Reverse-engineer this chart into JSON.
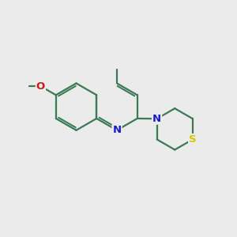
{
  "bg_color": "#ebebeb",
  "bond_color": "#3a7a55",
  "bond_width": 1.6,
  "atom_colors": {
    "N": "#1a1acc",
    "O": "#cc1a1a",
    "S": "#cccc00"
  },
  "font_size_atom": 9.5,
  "ring_r": 1.0,
  "thio_r": 0.88
}
